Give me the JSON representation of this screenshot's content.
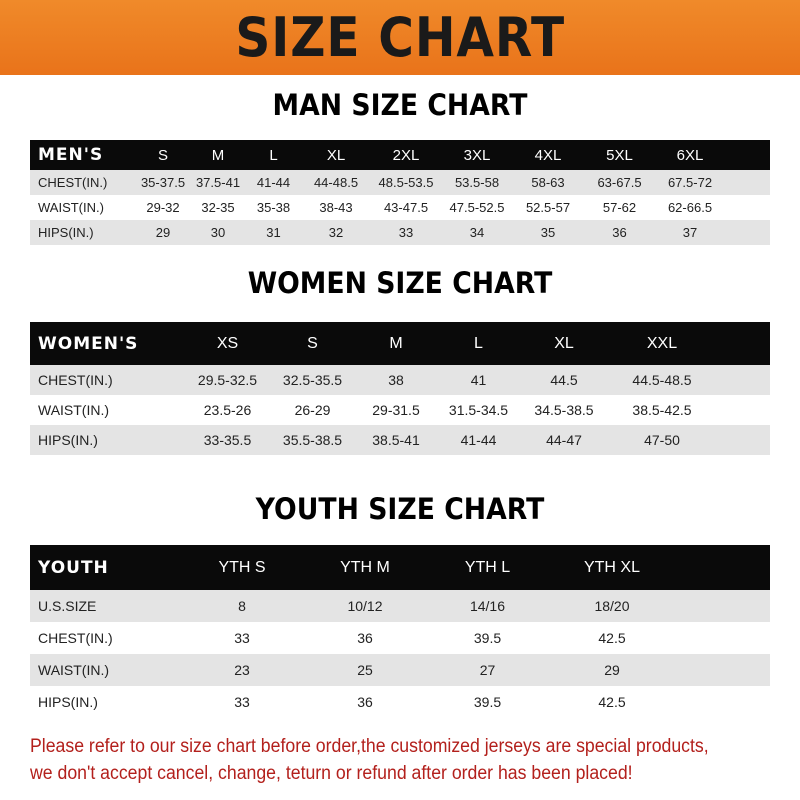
{
  "banner": "SIZE CHART",
  "men": {
    "title": "MAN SIZE CHART",
    "header": [
      "MEN'S",
      "S",
      "M",
      "L",
      "XL",
      "2XL",
      "3XL",
      "4XL",
      "5XL",
      "6XL"
    ],
    "rows": [
      [
        "CHEST(IN.)",
        "35-37.5",
        "37.5-41",
        "41-44",
        "44-48.5",
        "48.5-53.5",
        "53.5-58",
        "58-63",
        "63-67.5",
        "67.5-72"
      ],
      [
        "WAIST(IN.)",
        "29-32",
        "32-35",
        "35-38",
        "38-43",
        "43-47.5",
        "47.5-52.5",
        "52.5-57",
        "57-62",
        "62-66.5"
      ],
      [
        "HIPS(IN.)",
        "29",
        "30",
        "31",
        "32",
        "33",
        "34",
        "35",
        "36",
        "37"
      ]
    ]
  },
  "women": {
    "title": "WOMEN SIZE CHART",
    "header": [
      "WOMEN'S",
      "XS",
      "S",
      "M",
      "L",
      "XL",
      "XXL"
    ],
    "rows": [
      [
        "CHEST(IN.)",
        "29.5-32.5",
        "32.5-35.5",
        "38",
        "41",
        "44.5",
        "44.5-48.5"
      ],
      [
        "WAIST(IN.)",
        "23.5-26",
        "26-29",
        "29-31.5",
        "31.5-34.5",
        "34.5-38.5",
        "38.5-42.5"
      ],
      [
        "HIPS(IN.)",
        "33-35.5",
        "35.5-38.5",
        "38.5-41",
        "41-44",
        "44-47",
        "47-50"
      ]
    ]
  },
  "youth": {
    "title": "YOUTH SIZE CHART",
    "header": [
      "YOUTH",
      "YTH S",
      "YTH M",
      "YTH L",
      "YTH XL"
    ],
    "rows": [
      [
        "U.S.SIZE",
        "8",
        "10/12",
        "14/16",
        "18/20"
      ],
      [
        "CHEST(IN.)",
        "33",
        "36",
        "39.5",
        "42.5"
      ],
      [
        "WAIST(IN.)",
        "23",
        "25",
        "27",
        "29"
      ],
      [
        "HIPS(IN.)",
        "33",
        "36",
        "39.5",
        "42.5"
      ]
    ]
  },
  "note": [
    "Please refer to our size chart before order,the customized jerseys are special products,",
    "we don't accept cancel, change, teturn or refund after order has been placed!"
  ],
  "colors": {
    "banner": "#ec7d22",
    "header_row": "#0a0a0a",
    "shaded_row": "#e4e4e4",
    "note": "#b3201c"
  }
}
